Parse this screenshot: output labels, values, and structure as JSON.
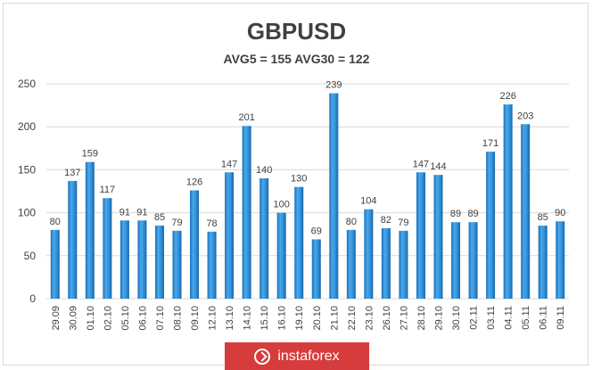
{
  "chart_data": {
    "type": "bar",
    "title": "GBPUSD",
    "subtitle": "AVG5 = 155 AVG30 = 122",
    "categories": [
      "29.09",
      "30.09",
      "01.10",
      "02.10",
      "05.10",
      "06.10",
      "07.10",
      "08.10",
      "09.10",
      "12.10",
      "13.10",
      "14.10",
      "15.10",
      "16.10",
      "19.10",
      "20.10",
      "21.10",
      "22.10",
      "23.10",
      "26.10",
      "27.10",
      "28.10",
      "29.10",
      "30.10",
      "02.11",
      "03.11",
      "04.11",
      "05.11",
      "06.11",
      "09.11"
    ],
    "values": [
      80,
      137,
      159,
      117,
      91,
      91,
      85,
      79,
      126,
      78,
      147,
      201,
      140,
      100,
      130,
      69,
      239,
      80,
      104,
      82,
      79,
      147,
      144,
      89,
      89,
      171,
      226,
      203,
      85,
      90
    ],
    "ylim": [
      0,
      250
    ],
    "yticks": [
      0,
      50,
      100,
      150,
      200,
      250
    ],
    "xlabel": "",
    "ylabel": "",
    "grid": true,
    "bar_color": "#2e8fd6"
  },
  "watermark": {
    "text": "instaforex",
    "logo_icon": "instaforex-logo-icon"
  }
}
